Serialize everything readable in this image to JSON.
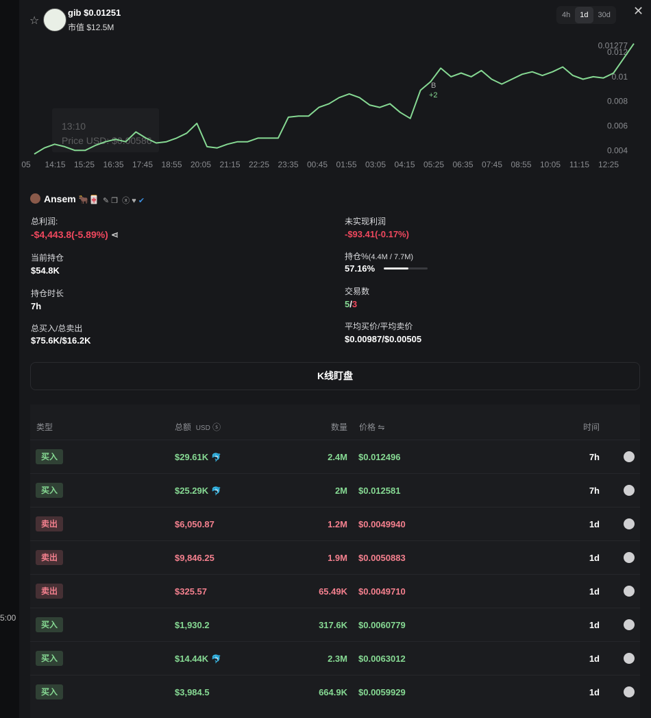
{
  "background_fragment": "5:00",
  "header": {
    "symbol": "gib",
    "price": "$0.01251",
    "market_cap_label": "市值",
    "market_cap": "$12.5M"
  },
  "timeframes": [
    "4h",
    "1d",
    "30d"
  ],
  "chart_data": {
    "type": "line",
    "x_labels": [
      "05",
      "14:15",
      "15:25",
      "16:35",
      "17:45",
      "18:55",
      "20:05",
      "21:15",
      "22:25",
      "23:35",
      "00:45",
      "01:55",
      "03:05",
      "04:15",
      "05:25",
      "06:35",
      "07:45",
      "08:55",
      "10:05",
      "11:15",
      "12:25"
    ],
    "series": [
      {
        "name": "Price USD",
        "color": "#86d993",
        "values": [
          0.0037,
          0.0042,
          0.0045,
          0.0043,
          0.004,
          0.004,
          0.0044,
          0.0047,
          0.0049,
          0.0047,
          0.0055,
          0.005,
          0.0046,
          0.0047,
          0.005,
          0.0054,
          0.0062,
          0.0043,
          0.0042,
          0.0045,
          0.0047,
          0.0047,
          0.005,
          0.005,
          0.005,
          0.0067,
          0.0068,
          0.0068,
          0.0075,
          0.0078,
          0.0083,
          0.0086,
          0.0083,
          0.0077,
          0.0075,
          0.0078,
          0.0071,
          0.0066,
          0.0089,
          0.0096,
          0.0107,
          0.01,
          0.0103,
          0.01,
          0.0105,
          0.0098,
          0.0094,
          0.0098,
          0.0102,
          0.0104,
          0.0101,
          0.0104,
          0.0108,
          0.0101,
          0.0098,
          0.01,
          0.0099,
          0.0103,
          0.0115,
          0.0127
        ]
      }
    ],
    "ylim": [
      0.0034,
      0.0129
    ],
    "yticks": [
      0.004,
      0.006,
      0.008,
      0.01,
      0.012
    ],
    "current_price": 0.01277,
    "annotations": [
      "B",
      "+2"
    ],
    "tooltip": {
      "time": "13:10",
      "price": "Price USD: $0.00586"
    }
  },
  "trader": {
    "name": "Ansem",
    "emoji": "🐂🀄"
  },
  "stats": {
    "total_profit": {
      "label": "总利润:",
      "value": "-$4,443.8(-5.89%)"
    },
    "unrealized": {
      "label": "未实现利润",
      "value": "-$93.41(-0.17%)"
    },
    "position": {
      "label": "当前持仓",
      "value": "$54.8K"
    },
    "holding_pct": {
      "label": "持仓%",
      "sub": "(4.4M / 7.7M)",
      "value": "57.16%"
    },
    "duration": {
      "label": "持仓时长",
      "value": "7h"
    },
    "trades": {
      "label": "交易数",
      "buys": "5",
      "sep": "/",
      "sells": "3"
    },
    "buy_sell": {
      "label": "总买入/总卖出",
      "value": "$75.6K/$16.2K"
    },
    "avg_price": {
      "label": "平均买价/平均卖价",
      "value": "$0.00987/$0.00505"
    }
  },
  "button": "K线盯盘",
  "table": {
    "headers": {
      "type": "类型",
      "amount": "总额",
      "unit": "USD",
      "qty": "数量",
      "price": "价格",
      "time": "时间"
    },
    "rows": [
      {
        "type": "买入",
        "amount": "$29.61K",
        "icon": "🐬",
        "qty": "2.4M",
        "price": "$0.012496",
        "time": "7h",
        "color": "#86d993"
      },
      {
        "type": "买入",
        "amount": "$25.29K",
        "icon": "🐬",
        "qty": "2M",
        "price": "$0.012581",
        "time": "7h",
        "color": "#86d993"
      },
      {
        "type": "卖出",
        "amount": "$6,050.87",
        "qty": "1.2M",
        "price": "$0.0049940",
        "time": "1d",
        "color": "#f4808e"
      },
      {
        "type": "卖出",
        "amount": "$9,846.25",
        "qty": "1.9M",
        "price": "$0.0050883",
        "time": "1d",
        "color": "#f4808e"
      },
      {
        "type": "卖出",
        "amount": "$325.57",
        "qty": "65.49K",
        "price": "$0.0049710",
        "time": "1d",
        "color": "#f4808e"
      },
      {
        "type": "买入",
        "amount": "$1,930.2",
        "qty": "317.6K",
        "price": "$0.0060779",
        "time": "1d",
        "color": "#86d993"
      },
      {
        "type": "买入",
        "amount": "$14.44K",
        "icon": "🐬",
        "qty": "2.3M",
        "price": "$0.0063012",
        "time": "1d",
        "color": "#86d993"
      },
      {
        "type": "买入",
        "amount": "$3,984.5",
        "qty": "664.9K",
        "price": "$0.0059929",
        "time": "1d",
        "color": "#86d993"
      }
    ]
  }
}
